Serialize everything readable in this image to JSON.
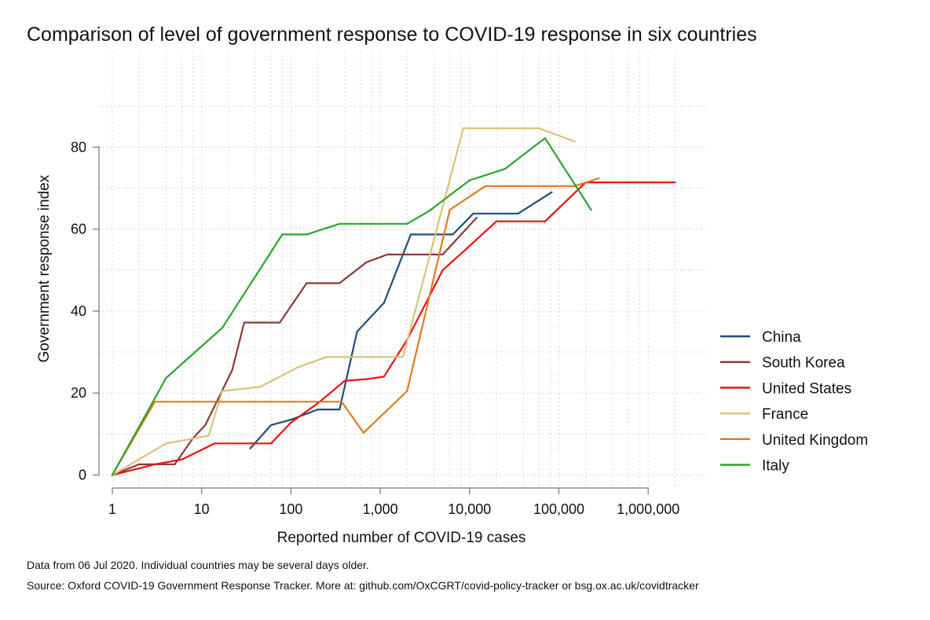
{
  "chart_data": {
    "type": "line",
    "title": "Comparison of level of government response to COVID-19 response in six countries",
    "xlabel": "Reported number of COVID-19 cases",
    "ylabel": "Government response index",
    "x_scale": "log",
    "xlim": [
      1,
      2500000
    ],
    "ylim": [
      -3,
      100
    ],
    "x_ticks": [
      1,
      10,
      100,
      1000,
      10000,
      100000,
      1000000
    ],
    "x_tick_labels": [
      "1",
      "10",
      "100",
      "1,000",
      "10,000",
      "100,000",
      "1,000,000"
    ],
    "y_ticks": [
      0,
      20,
      40,
      60,
      80
    ],
    "y_tick_labels": [
      "0",
      "20",
      "40",
      "60",
      "80"
    ],
    "grid": true,
    "legend_position": "right",
    "series": [
      {
        "name": "China",
        "color": "#1f4e79",
        "points": [
          [
            35,
            6.5
          ],
          [
            60,
            12.2
          ],
          [
            100,
            13.5
          ],
          [
            200,
            16
          ],
          [
            350,
            16
          ],
          [
            550,
            35
          ],
          [
            1100,
            42
          ],
          [
            2200,
            58.7
          ],
          [
            6500,
            58.7
          ],
          [
            11000,
            63.8
          ],
          [
            35000,
            63.8
          ],
          [
            83000,
            69
          ]
        ]
      },
      {
        "name": "South Korea",
        "color": "#8b3a3a",
        "points": [
          [
            1,
            0
          ],
          [
            2,
            2.6
          ],
          [
            5,
            2.6
          ],
          [
            8,
            9
          ],
          [
            11,
            12.2
          ],
          [
            22,
            25.6
          ],
          [
            30,
            37.2
          ],
          [
            75,
            37.2
          ],
          [
            150,
            46.8
          ],
          [
            350,
            46.8
          ],
          [
            700,
            51.9
          ],
          [
            1200,
            53.8
          ],
          [
            5000,
            53.8
          ],
          [
            12000,
            62.8
          ]
        ]
      },
      {
        "name": "United States",
        "color": "#ee1111",
        "points": [
          [
            1,
            0
          ],
          [
            3,
            2.6
          ],
          [
            6,
            3.8
          ],
          [
            14,
            7.7
          ],
          [
            60,
            7.7
          ],
          [
            100,
            12.8
          ],
          [
            200,
            17.5
          ],
          [
            400,
            23
          ],
          [
            700,
            23.4
          ],
          [
            1100,
            24
          ],
          [
            2000,
            33
          ],
          [
            5000,
            50
          ],
          [
            9000,
            55
          ],
          [
            20000,
            61.9
          ],
          [
            70000,
            61.9
          ],
          [
            200000,
            71.4
          ],
          [
            2000000,
            71.4
          ]
        ]
      },
      {
        "name": "France",
        "color": "#d9c27e",
        "points": [
          [
            1,
            0
          ],
          [
            4,
            7.7
          ],
          [
            12,
            9.6
          ],
          [
            17,
            20.5
          ],
          [
            45,
            21.5
          ],
          [
            120,
            26.3
          ],
          [
            250,
            28.8
          ],
          [
            1800,
            28.8
          ],
          [
            8500,
            84.6
          ],
          [
            60000,
            84.6
          ],
          [
            150000,
            81.4
          ]
        ]
      },
      {
        "name": "United Kingdom",
        "color": "#e07b1f",
        "points": [
          [
            1,
            0
          ],
          [
            3,
            17.9
          ],
          [
            370,
            17.9
          ],
          [
            650,
            10.3
          ],
          [
            2000,
            20.5
          ],
          [
            6000,
            64.7
          ],
          [
            15000,
            70.5
          ],
          [
            150000,
            70.5
          ],
          [
            280000,
            72.4
          ]
        ]
      },
      {
        "name": "Italy",
        "color": "#2aa52a",
        "points": [
          [
            1,
            0
          ],
          [
            4,
            23.7
          ],
          [
            17,
            35.9
          ],
          [
            80,
            58.7
          ],
          [
            150,
            58.7
          ],
          [
            350,
            61.3
          ],
          [
            2000,
            61.3
          ],
          [
            3500,
            64.4
          ],
          [
            10000,
            71.9
          ],
          [
            25000,
            74.7
          ],
          [
            70000,
            82.2
          ],
          [
            230000,
            64.7
          ]
        ]
      }
    ]
  },
  "notes": {
    "line1": "Data from 06 Jul 2020. Individual countries may be several days older.",
    "line2": "Source: Oxford COVID-19 Government Response Tracker. More at: github.com/OxCGRT/covid-policy-tracker or bsg.ox.ac.uk/covidtracker"
  }
}
